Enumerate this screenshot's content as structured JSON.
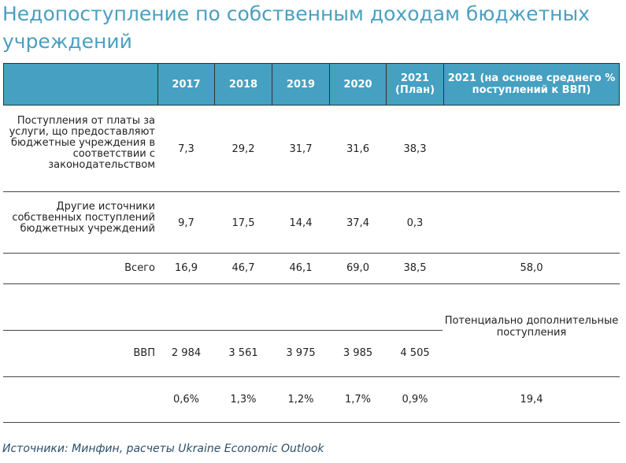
{
  "title": "Недопоступление по собственным доходам бюджетных учреждений",
  "table": {
    "headers": [
      "",
      "2017",
      "2018",
      "2019",
      "2020",
      "2021 (План)",
      "2021 (на основе среднего  % поступлений к ВВП)"
    ],
    "rows": [
      {
        "label": "Поступления от платы за услуги, що предоставляют бюджетные учреждения в соответствии с законодательством",
        "values": [
          "7,3",
          "29,2",
          "31,7",
          "31,6",
          "38,3",
          ""
        ]
      },
      {
        "label": "Другие источники собственных поступлений бюджетных учреждений",
        "values": [
          "9,7",
          "17,5",
          "14,4",
          "37,4",
          "0,3",
          ""
        ]
      },
      {
        "label": "Всего",
        "values": [
          "16,9",
          "46,7",
          "46,1",
          "69,0",
          "38,5",
          "58,0"
        ]
      }
    ],
    "gdp_row": {
      "label": "ВВП",
      "values": [
        "2 984",
        "3 561",
        "3 975",
        "3 985",
        "4 505"
      ],
      "side_note": "Потенциально дополнительные поступления"
    },
    "ratio_row": {
      "values": [
        "0,6%",
        "1,3%",
        "1,2%",
        "1,7%",
        "0,9%",
        "19,4"
      ]
    }
  },
  "source": "Источники: Минфин, расчеты Ukraine Economic Outlook"
}
